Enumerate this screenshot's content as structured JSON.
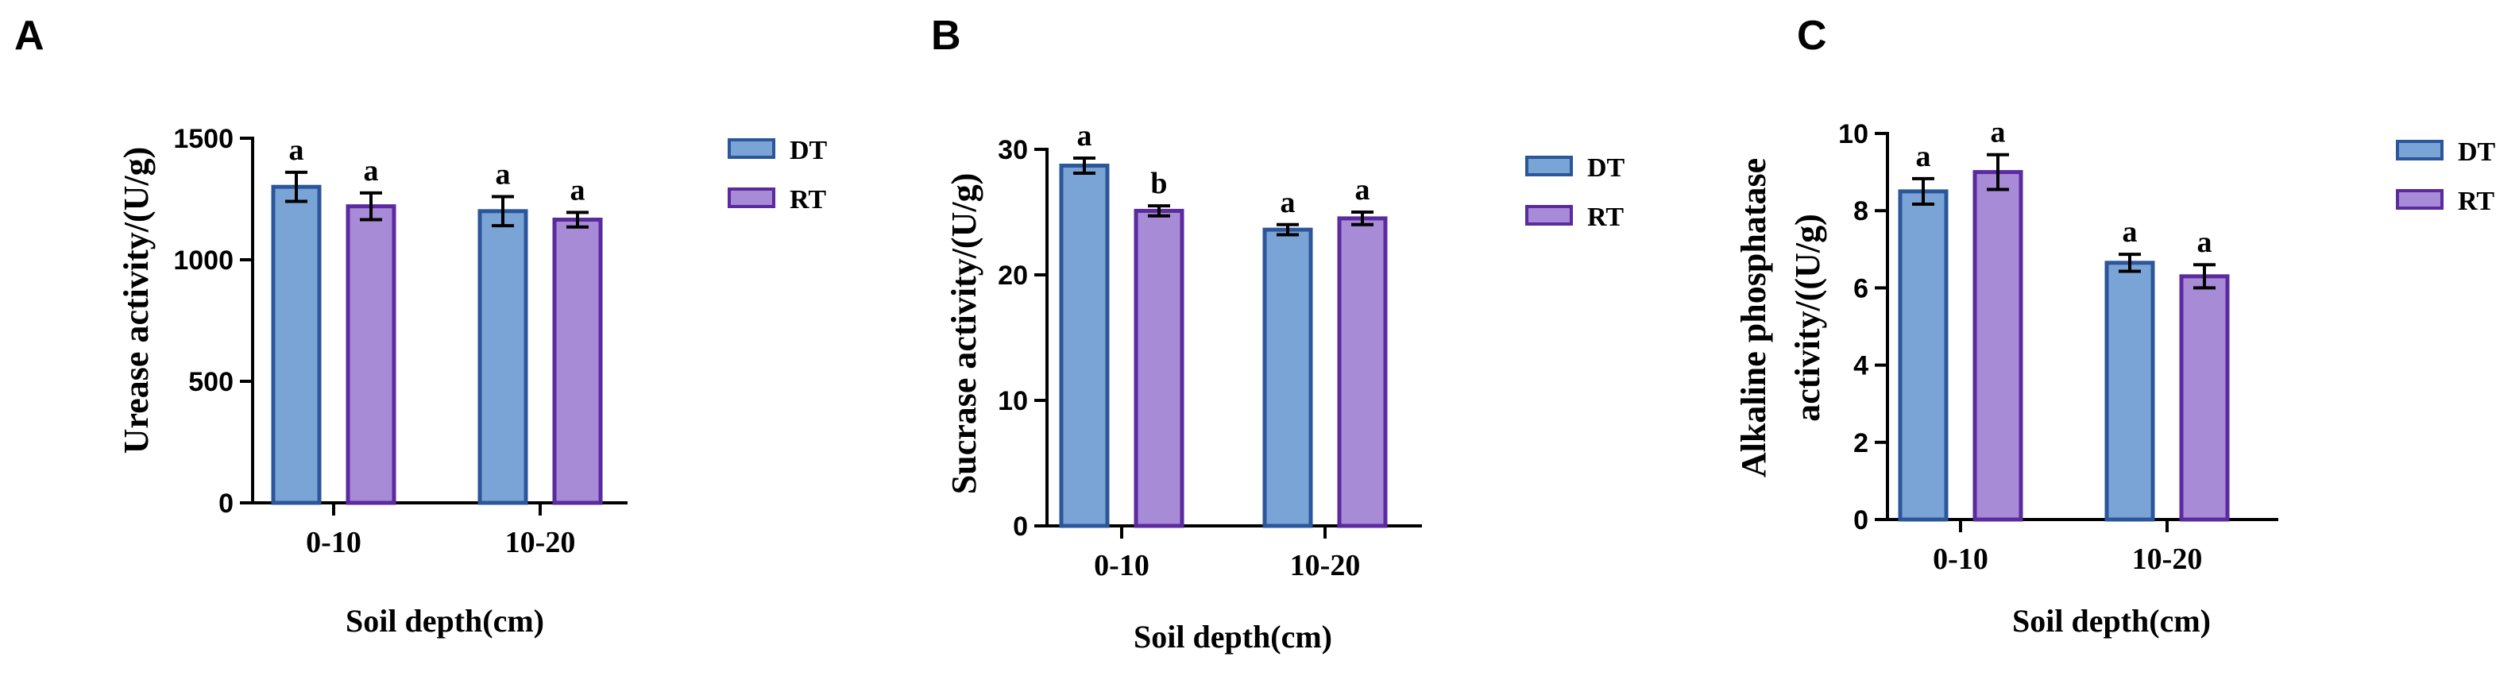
{
  "chart_data": [
    {
      "panel": "A",
      "type": "bar",
      "xlabel": "Soil depth(cm)",
      "ylabel": "Urease activity/(U/g)",
      "categories": [
        "0-10",
        "10-20"
      ],
      "ylim": [
        0,
        1500
      ],
      "yticks": [
        0,
        500,
        1000,
        1500
      ],
      "series": [
        {
          "name": "DT",
          "values": [
            1300,
            1200
          ],
          "errors": [
            60,
            60
          ],
          "letters": [
            "a",
            "a"
          ]
        },
        {
          "name": "RT",
          "values": [
            1220,
            1165
          ],
          "errors": [
            55,
            30
          ],
          "letters": [
            "a",
            "a"
          ]
        }
      ],
      "legend": "right"
    },
    {
      "panel": "B",
      "type": "bar",
      "xlabel": "Soil depth(cm)",
      "ylabel": "Sucrase activity/(U/g)",
      "categories": [
        "0-10",
        "10-20"
      ],
      "ylim": [
        0,
        30
      ],
      "yticks": [
        0,
        10,
        20,
        30
      ],
      "series": [
        {
          "name": "DT",
          "values": [
            28.7,
            23.6
          ],
          "errors": [
            0.6,
            0.4
          ],
          "letters": [
            "a",
            "a"
          ]
        },
        {
          "name": "RT",
          "values": [
            25.1,
            24.5
          ],
          "errors": [
            0.4,
            0.5
          ],
          "letters": [
            "b",
            "a"
          ]
        }
      ],
      "legend": "right"
    },
    {
      "panel": "C",
      "type": "bar",
      "xlabel": "Soil depth(cm)",
      "ylabel": "Alkaline phosphatase activity/((U/g)",
      "ylabel_lines": [
        "Alkaline phosphatase",
        "activity/((U/g)"
      ],
      "categories": [
        "0-10",
        "10-20"
      ],
      "ylim": [
        0,
        10
      ],
      "yticks": [
        0,
        2,
        4,
        6,
        8,
        10
      ],
      "series": [
        {
          "name": "DT",
          "values": [
            8.5,
            6.65
          ],
          "errors": [
            0.33,
            0.22
          ],
          "letters": [
            "a",
            "a"
          ]
        },
        {
          "name": "RT",
          "values": [
            9.0,
            6.3
          ],
          "errors": [
            0.45,
            0.3
          ],
          "letters": [
            "a",
            "a"
          ]
        }
      ],
      "legend": "right"
    }
  ],
  "colors": {
    "dt_fill": "#7ba4d6",
    "dt_stroke": "#2b579a",
    "rt_fill": "#a88bd6",
    "rt_stroke": "#5a2a9e"
  }
}
